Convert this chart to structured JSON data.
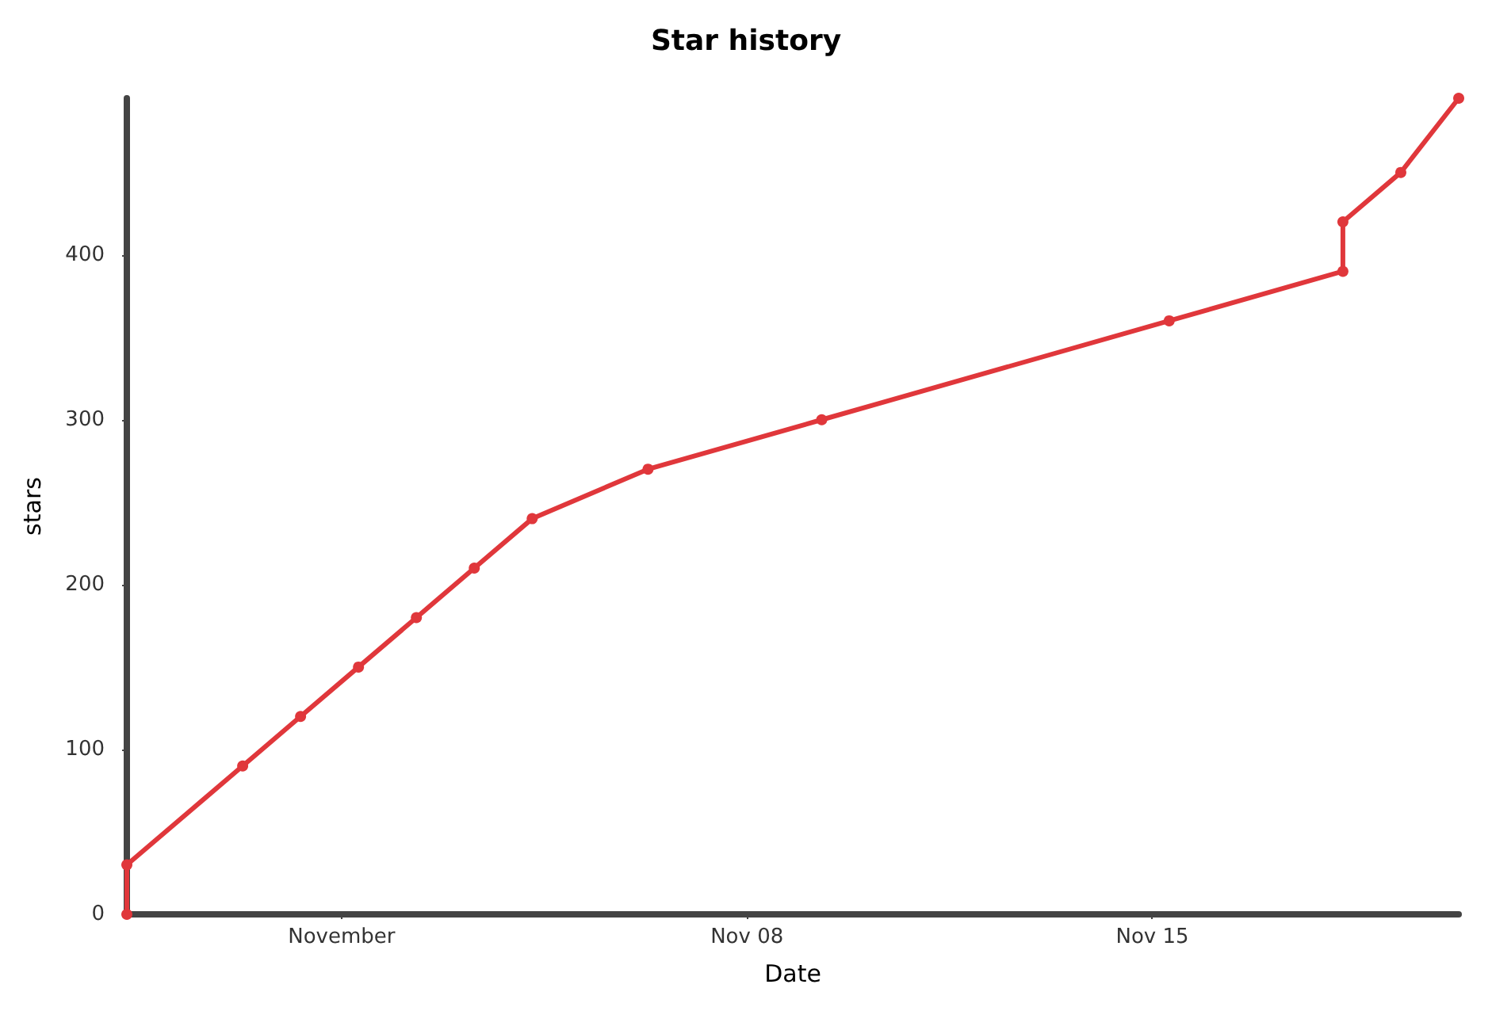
{
  "chart_data": {
    "type": "line",
    "title": "Star history",
    "xlabel": "Date",
    "ylabel": "stars",
    "x": [
      "--10-28T07:00",
      "--10-28T07:00",
      "--10-30T07:00",
      "--10-31T07:00",
      "--11-01T07:00",
      "--11-02T07:00",
      "--11-03T07:00",
      "--11-04T07:00",
      "--11-06T07:00",
      "--11-09T07:00",
      "--11-15T07:00",
      "--11-18T07:00",
      "--11-18T07:00",
      "--11-19T07:00",
      "--11-20T07:00"
    ],
    "series": [
      {
        "color": "#e0373b",
        "values": [
          0,
          30,
          90,
          120,
          150,
          180,
          210,
          240,
          270,
          300,
          360,
          390,
          420,
          450,
          495
        ]
      }
    ],
    "xlim": [
      "--10-28T07:00",
      "--11-20T07:00"
    ],
    "ylim": [
      0,
      495
    ],
    "xticks": [
      {
        "value": "--11-01",
        "label": "November"
      },
      {
        "value": "--11-08",
        "label": "Nov 08"
      },
      {
        "value": "--11-15",
        "label": "Nov 15"
      }
    ],
    "yticks": [
      0,
      100,
      200,
      300,
      400
    ],
    "grid": false,
    "legend": false,
    "marker": "circle",
    "line_style": "solid"
  }
}
